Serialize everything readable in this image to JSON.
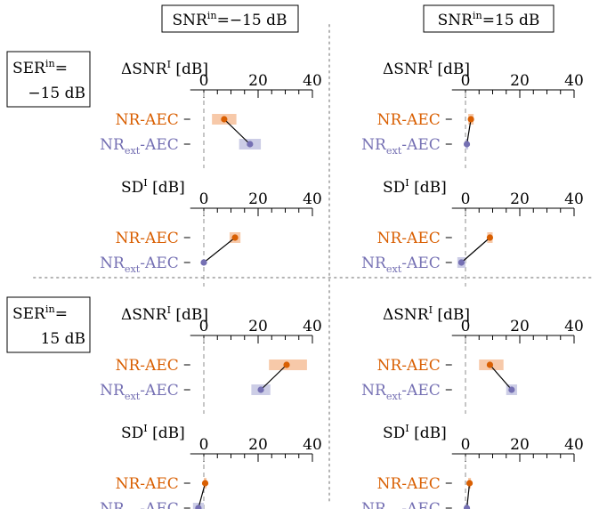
{
  "colors": {
    "nr": "#d95f02",
    "nr_band": "#f7c9a9",
    "ext": "#7570b3",
    "ext_band": "#cccde6",
    "axis": "#000000",
    "zero_line": "#8c8c8c",
    "separator": "#b4b4b4"
  },
  "headers": {
    "col": [
      {
        "pre": "SNR",
        "sup": "in",
        "post": "=−15 dB"
      },
      {
        "pre": "SNR",
        "sup": "in",
        "post": "=15 dB"
      }
    ],
    "row": [
      {
        "l1_pre": "SER",
        "l1_sup": "in",
        "l1_post": "=",
        "l2": "−15 dB"
      },
      {
        "l1_pre": "SER",
        "l1_sup": "in",
        "l1_post": "=",
        "l2": "15 dB"
      }
    ]
  },
  "methods": {
    "nr": {
      "label": "NR-AEC"
    },
    "ext": {
      "pre": "NR",
      "sub": "ext",
      "post": "-AEC"
    }
  },
  "metrics": {
    "dsnr": {
      "pre": "ΔSNR",
      "sup": "I",
      "post": " [dB]"
    },
    "sd": {
      "pre": "SD",
      "sup": "I",
      "post": " [dB]"
    }
  },
  "chart_data": {
    "type": "dot-range",
    "xlim": [
      -5,
      40
    ],
    "ticks": [
      0,
      20,
      40
    ],
    "minor_ticks": [
      5,
      10,
      15,
      25,
      30,
      35
    ],
    "panels": [
      {
        "ser_in": "−15 dB",
        "snr_in": "−15 dB",
        "metric": "dsnr",
        "nr": {
          "value": 7.5,
          "range": [
            3,
            12
          ]
        },
        "ext": {
          "value": 17,
          "range": [
            13,
            21
          ]
        }
      },
      {
        "ser_in": "−15 dB",
        "snr_in": "−15 dB",
        "metric": "sd",
        "nr": {
          "value": 11.5,
          "range": [
            9.5,
            13.5
          ]
        },
        "ext": {
          "value": 0,
          "range": [
            0,
            0
          ]
        }
      },
      {
        "ser_in": "−15 dB",
        "snr_in": "15 dB",
        "metric": "dsnr",
        "nr": {
          "value": 2,
          "range": [
            1,
            3
          ]
        },
        "ext": {
          "value": 0.5,
          "range": [
            0,
            1
          ]
        }
      },
      {
        "ser_in": "−15 dB",
        "snr_in": "15 dB",
        "metric": "sd",
        "nr": {
          "value": 9,
          "range": [
            8,
            10
          ]
        },
        "ext": {
          "value": -1.5,
          "range": [
            -3,
            0
          ]
        }
      },
      {
        "ser_in": "15 dB",
        "snr_in": "−15 dB",
        "metric": "dsnr",
        "nr": {
          "value": 30.5,
          "range": [
            24,
            38
          ]
        },
        "ext": {
          "value": 21,
          "range": [
            17.5,
            24.5
          ]
        }
      },
      {
        "ser_in": "15 dB",
        "snr_in": "−15 dB",
        "metric": "sd",
        "nr": {
          "value": 0.5,
          "range": [
            0,
            1
          ]
        },
        "ext": {
          "value": -2,
          "range": [
            -4,
            0
          ]
        }
      },
      {
        "ser_in": "15 dB",
        "snr_in": "15 dB",
        "metric": "dsnr",
        "nr": {
          "value": 9,
          "range": [
            5,
            14
          ]
        },
        "ext": {
          "value": 17,
          "range": [
            15,
            19
          ]
        }
      },
      {
        "ser_in": "15 dB",
        "snr_in": "15 dB",
        "metric": "sd",
        "nr": {
          "value": 1.5,
          "range": [
            1,
            2
          ]
        },
        "ext": {
          "value": 0.5,
          "range": [
            0,
            1
          ]
        }
      }
    ]
  }
}
